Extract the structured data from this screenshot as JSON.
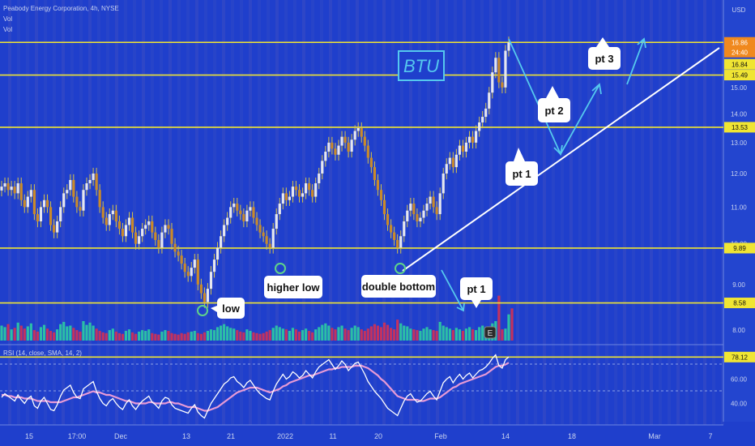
{
  "header": {
    "title_line": "Peabody Energy Corporation, 4h, NYSE",
    "indicator_1": "Vol",
    "indicator_2": "Vol",
    "currency": "USD"
  },
  "rsi_header": "RSI (14, close, SMA, 14, 2)",
  "colors": {
    "background": "#1f3fcc",
    "bull": "#2bbfa6",
    "bear": "#c2325f",
    "wick": "#d7c34a",
    "level_line": "#f0e533",
    "trendline": "#ffffff",
    "arrow": "#55c8ee",
    "rsi_line": "#ffffff",
    "rsi_ma": "#e79ad6",
    "axis_text": "#c9d2ee",
    "last_price_tag": "#f0891e"
  },
  "chart_data": [
    {
      "type": "candlestick",
      "title": "Peabody Energy Corporation, 4h, NYSE",
      "ylim": [
        7.7,
        17.3
      ],
      "y_scale": "log",
      "ytick_labels": [
        "8.00",
        "9.00",
        "10.00",
        "11.00",
        "12.00",
        "13.00",
        "14.00",
        "15.00",
        "16.00"
      ],
      "xtick_labels": [
        "15",
        "17:00",
        "Dec",
        "13",
        "21",
        "2022",
        "11",
        "20",
        "Feb",
        "14",
        "18",
        "Mar",
        "7"
      ],
      "levels": [
        16.86,
        15.49,
        13.53,
        9.89,
        8.58
      ],
      "level_labels": [
        "16.86",
        "15.49",
        "13.53",
        "9.89",
        "8.58"
      ],
      "last_price_label": "16.86",
      "countdown_label": "24:40",
      "annotation_price": "16.84",
      "key_closes": [
        {
          "label": "higher low",
          "price": 9.89
        },
        {
          "label": "double bottom",
          "price": 9.89
        },
        {
          "label": "low",
          "price": 8.58
        }
      ],
      "candle_closes": [
        11.6,
        11.7,
        11.5,
        11.6,
        11.4,
        11.7,
        11.2,
        11.0,
        11.3,
        11.5,
        10.8,
        10.6,
        11.0,
        11.2,
        11.0,
        10.5,
        10.3,
        10.6,
        11.0,
        11.4,
        11.5,
        11.8,
        11.3,
        11.0,
        10.9,
        11.5,
        11.7,
        11.8,
        12.0,
        11.5,
        11.0,
        10.7,
        10.5,
        10.8,
        10.9,
        10.6,
        10.4,
        10.2,
        10.5,
        10.7,
        10.3,
        10.0,
        10.2,
        10.4,
        10.5,
        10.6,
        10.3,
        10.1,
        9.9,
        10.3,
        10.5,
        10.4,
        10.0,
        9.8,
        9.7,
        9.5,
        9.3,
        9.2,
        9.4,
        9.6,
        9.0,
        8.8,
        8.6,
        8.9,
        9.3,
        9.6,
        9.9,
        10.2,
        10.5,
        10.7,
        11.0,
        11.1,
        10.9,
        10.8,
        10.6,
        10.9,
        11.0,
        10.7,
        10.5,
        10.3,
        10.2,
        10.0,
        9.9,
        10.4,
        10.8,
        11.1,
        11.4,
        11.2,
        11.3,
        11.6,
        11.5,
        11.3,
        11.4,
        11.7,
        11.5,
        11.3,
        11.7,
        12.0,
        12.4,
        12.7,
        13.0,
        12.8,
        12.6,
        12.9,
        13.2,
        13.0,
        12.7,
        13.1,
        13.4,
        13.5,
        13.2,
        12.9,
        12.5,
        12.2,
        11.8,
        11.5,
        11.2,
        10.8,
        10.5,
        10.3,
        10.1,
        9.9,
        10.2,
        10.6,
        10.9,
        11.1,
        10.8,
        10.6,
        10.7,
        10.9,
        11.1,
        11.3,
        11.0,
        10.8,
        11.4,
        12.0,
        12.3,
        12.5,
        12.2,
        12.6,
        12.9,
        12.7,
        13.0,
        13.2,
        13.0,
        13.4,
        13.7,
        13.9,
        14.2,
        14.8,
        15.6,
        16.2,
        15.2,
        15.0,
        16.5,
        16.86
      ]
    },
    {
      "type": "bar",
      "title": "Vol",
      "ylim": [
        0,
        6.5
      ],
      "volumes": [
        2,
        1.8,
        2.2,
        1.5,
        1.7,
        2.4,
        2.0,
        1.6,
        1.9,
        2.3,
        1.4,
        1.2,
        1.8,
        2.1,
        1.6,
        1.3,
        1.1,
        1.5,
        2.2,
        2.5,
        1.9,
        2.0,
        1.7,
        1.4,
        1.2,
        2.6,
        2.1,
        2.4,
        2.0,
        1.6,
        1.3,
        1.1,
        1.0,
        1.4,
        1.6,
        1.2,
        1.0,
        0.9,
        1.3,
        1.5,
        1.1,
        0.9,
        1.2,
        1.4,
        1.3,
        1.5,
        1.0,
        0.9,
        0.8,
        1.2,
        1.4,
        1.3,
        1.0,
        0.9,
        0.8,
        1.0,
        0.9,
        1.1,
        1.2,
        1.3,
        1.0,
        0.9,
        1.1,
        1.3,
        1.5,
        1.4,
        1.8,
        2.0,
        2.2,
        1.9,
        1.7,
        1.6,
        1.4,
        1.2,
        1.1,
        1.5,
        1.3,
        1.1,
        1.0,
        0.9,
        1.0,
        1.2,
        1.4,
        1.7,
        2.0,
        1.8,
        1.6,
        1.5,
        1.3,
        1.7,
        1.5,
        1.2,
        1.4,
        1.6,
        1.3,
        1.1,
        1.5,
        1.8,
        2.1,
        2.3,
        2.0,
        1.7,
        1.5,
        1.8,
        2.0,
        1.6,
        1.4,
        1.7,
        2.0,
        1.8,
        1.5,
        1.3,
        1.6,
        1.9,
        2.2,
        2.0,
        1.8,
        2.4,
        2.1,
        1.7,
        1.5,
        2.8,
        2.3,
        2.0,
        1.9,
        1.6,
        1.5,
        1.4,
        1.3,
        1.6,
        1.8,
        1.5,
        1.4,
        1.3,
        2.5,
        2.0,
        1.8,
        1.6,
        1.4,
        1.7,
        1.5,
        1.3,
        1.6,
        1.8,
        1.5,
        1.4,
        1.8,
        2.0,
        1.7,
        1.9,
        2.3,
        2.6,
        6.0,
        1.5,
        1.6,
        3.5,
        4.3
      ]
    },
    {
      "type": "line",
      "title": "RSI (14, close, SMA, 14, 2)",
      "ylim": [
        25,
        85
      ],
      "ytick_labels": [
        "40.00",
        "60.00"
      ],
      "last_value_label": "78.12",
      "rsi": [
        45,
        48,
        46,
        44,
        42,
        47,
        43,
        40,
        44,
        46,
        38,
        36,
        42,
        45,
        40,
        35,
        34,
        39,
        46,
        51,
        53,
        55,
        49,
        45,
        44,
        52,
        54,
        56,
        58,
        50,
        44,
        40,
        38,
        42,
        44,
        40,
        37,
        35,
        40,
        43,
        38,
        35,
        39,
        42,
        44,
        46,
        41,
        39,
        36,
        42,
        45,
        44,
        39,
        36,
        35,
        34,
        33,
        32,
        36,
        39,
        33,
        30,
        28,
        34,
        40,
        44,
        48,
        52,
        56,
        58,
        61,
        62,
        58,
        56,
        53,
        57,
        59,
        55,
        51,
        48,
        46,
        44,
        43,
        50,
        56,
        60,
        64,
        60,
        62,
        66,
        64,
        61,
        63,
        67,
        64,
        61,
        66,
        70,
        72,
        74,
        76,
        72,
        68,
        71,
        75,
        72,
        67,
        70,
        73,
        74,
        69,
        64,
        58,
        54,
        50,
        47,
        44,
        40,
        36,
        34,
        32,
        30,
        36,
        42,
        46,
        48,
        44,
        41,
        42,
        45,
        48,
        50,
        46,
        43,
        50,
        57,
        60,
        62,
        57,
        61,
        64,
        60,
        63,
        65,
        61,
        64,
        67,
        68,
        70,
        73,
        77,
        80,
        71,
        69,
        76,
        78.12
      ],
      "rsi_ma": [
        47,
        47,
        46,
        46,
        45,
        45,
        45,
        44,
        44,
        44,
        43,
        42,
        42,
        42,
        42,
        41,
        41,
        41,
        41,
        42,
        43,
        44,
        45,
        45,
        46,
        47,
        48,
        49,
        50,
        49,
        49,
        48,
        47,
        47,
        46,
        45,
        44,
        43,
        42,
        42,
        41,
        40,
        40,
        40,
        40,
        41,
        41,
        40,
        40,
        40,
        40,
        41,
        41,
        40,
        40,
        39,
        38,
        37,
        37,
        37,
        36,
        35,
        34,
        34,
        35,
        36,
        37,
        39,
        41,
        43,
        45,
        47,
        49,
        50,
        51,
        52,
        53,
        53,
        53,
        52,
        51,
        50,
        49,
        50,
        51,
        52,
        54,
        55,
        57,
        58,
        59,
        60,
        61,
        62,
        63,
        63,
        64,
        65,
        66,
        67,
        68,
        68,
        69,
        69,
        70,
        70,
        70,
        70,
        71,
        71,
        71,
        70,
        69,
        67,
        65,
        63,
        60,
        58,
        55,
        52,
        49,
        46,
        45,
        44,
        43,
        43,
        43,
        43,
        42,
        42,
        43,
        44,
        44,
        44,
        45,
        47,
        49,
        51,
        53,
        54,
        56,
        57,
        58,
        59,
        60,
        61,
        62,
        63,
        64,
        66,
        68,
        70,
        71,
        71,
        72,
        73.5
      ]
    }
  ],
  "time_axis": {
    "labels": [
      "15",
      "17:00",
      "Dec",
      "13",
      "21",
      "2022",
      "11",
      "20",
      "Feb",
      "14",
      "18",
      "Mar",
      "7"
    ]
  },
  "annotations": {
    "ticker_label": "BTU",
    "higher_low": "higher low",
    "double_bottom": "double bottom",
    "low": "low",
    "pt1_lower": "pt 1",
    "pt1_upper": "pt 1",
    "pt2": "pt 2",
    "pt3": "pt 3",
    "earnings_marker": "E"
  }
}
